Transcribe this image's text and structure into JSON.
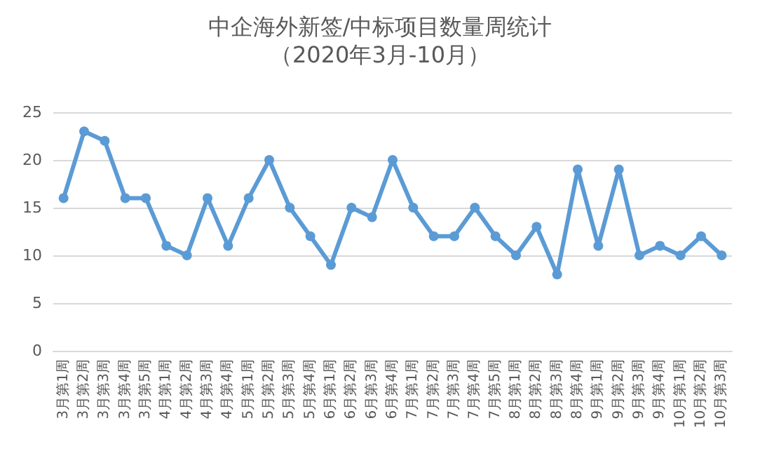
{
  "chart_data": {
    "type": "line",
    "title": "中企海外新签/中标项目数量周统计",
    "subtitle": "（2020年3月-10月）",
    "categories": [
      "3月第1周",
      "3月第2周",
      "3月第3周",
      "3月第4周",
      "3月第5周",
      "4月第1周",
      "4月第2周",
      "4月第3周",
      "4月第4周",
      "5月第1周",
      "5月第2周",
      "5月第3周",
      "5月第4周",
      "6月第1周",
      "6月第2周",
      "6月第3周",
      "6月第4周",
      "7月第1周",
      "7月第2周",
      "7月第3周",
      "7月第4周",
      "7月第5周",
      "8月第1周",
      "8月第2周",
      "8月第3周",
      "8月第4周",
      "9月第1周",
      "9月第2周",
      "9月第3周",
      "9月第4周",
      "10月第1周",
      "10月第2周",
      "10月第3周"
    ],
    "series": [
      {
        "color": "#5b9bd5",
        "values": [
          16,
          23,
          22,
          16,
          16,
          11,
          10,
          16,
          11,
          16,
          20,
          15,
          12,
          9,
          15,
          14,
          20,
          15,
          12,
          12,
          15,
          12,
          10,
          13,
          8,
          19,
          11,
          19,
          10,
          11,
          10,
          12,
          10
        ]
      }
    ],
    "ylim": [
      0,
      25
    ],
    "yticks": [
      0,
      5,
      10,
      15,
      20,
      25
    ],
    "grid": "y",
    "marker": "circle",
    "line_style": "solid"
  }
}
